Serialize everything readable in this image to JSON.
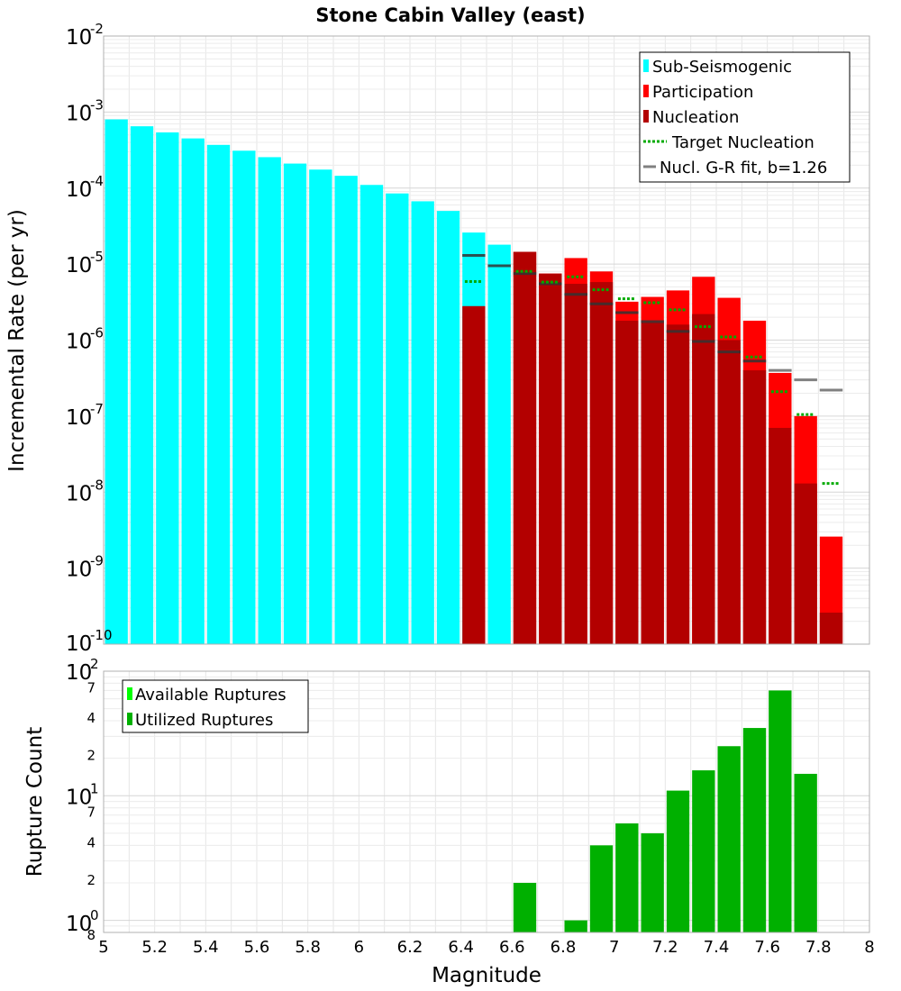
{
  "chart_data": [
    {
      "type": "bar",
      "title": "Stone Cabin Valley (east)",
      "xlabel": "",
      "ylabel": "Incremental Rate (per yr)",
      "xlim": [
        5,
        8
      ],
      "ylim": [
        1e-10,
        0.01
      ],
      "yscale": "log",
      "yticks": [
        {
          "base": "10",
          "exp": "-2",
          "value": 0.01
        },
        {
          "base": "10",
          "exp": "-3",
          "value": 0.001
        },
        {
          "base": "10",
          "exp": "-4",
          "value": 0.0001
        },
        {
          "base": "10",
          "exp": "-5",
          "value": 1e-05
        },
        {
          "base": "10",
          "exp": "-6",
          "value": 1e-06
        },
        {
          "base": "10",
          "exp": "-7",
          "value": 1e-07
        },
        {
          "base": "10",
          "exp": "-8",
          "value": 1e-08
        },
        {
          "base": "10",
          "exp": "-9",
          "value": 1e-09
        },
        {
          "base": "10",
          "exp": "-10",
          "value": 1e-10
        }
      ],
      "bin_width": 0.1,
      "legend_position": "top-right",
      "series": [
        {
          "name": "Sub-Seismogenic",
          "color": "#00ffff",
          "style": "bar",
          "points": [
            [
              5.05,
              0.0008
            ],
            [
              5.15,
              0.00065
            ],
            [
              5.25,
              0.00054
            ],
            [
              5.35,
              0.00045
            ],
            [
              5.45,
              0.00037
            ],
            [
              5.55,
              0.00031
            ],
            [
              5.65,
              0.000255
            ],
            [
              5.75,
              0.00021
            ],
            [
              5.85,
              0.000175
            ],
            [
              5.95,
              0.000145
            ],
            [
              6.05,
              0.00011
            ],
            [
              6.15,
              8.5e-05
            ],
            [
              6.25,
              6.7e-05
            ],
            [
              6.35,
              5e-05
            ],
            [
              6.45,
              2.6e-05
            ],
            [
              6.55,
              1.8e-05
            ]
          ]
        },
        {
          "name": "Participation",
          "color": "#ff0000",
          "style": "bar",
          "points": [
            [
              6.65,
              1.45e-05
            ],
            [
              6.75,
              7.5e-06
            ],
            [
              6.85,
              1.2e-05
            ],
            [
              6.95,
              8e-06
            ],
            [
              7.05,
              3.2e-06
            ],
            [
              7.15,
              3.7e-06
            ],
            [
              7.25,
              4.5e-06
            ],
            [
              7.35,
              6.8e-06
            ],
            [
              7.45,
              3.6e-06
            ],
            [
              7.55,
              1.8e-06
            ],
            [
              7.65,
              3.7e-07
            ],
            [
              7.75,
              1e-07
            ],
            [
              7.85,
              2.6e-09
            ]
          ]
        },
        {
          "name": "Nucleation",
          "color": "#b30000",
          "style": "bar",
          "points": [
            [
              6.45,
              2.8e-06
            ],
            [
              6.65,
              1.45e-05
            ],
            [
              6.75,
              7.5e-06
            ],
            [
              6.85,
              5.5e-06
            ],
            [
              6.95,
              5.8e-06
            ],
            [
              7.05,
              1.8e-06
            ],
            [
              7.15,
              1.7e-06
            ],
            [
              7.25,
              1.6e-06
            ],
            [
              7.35,
              2.2e-06
            ],
            [
              7.45,
              1e-06
            ],
            [
              7.55,
              4e-07
            ],
            [
              7.65,
              7e-08
            ],
            [
              7.75,
              1.3e-08
            ],
            [
              7.85,
              2.6e-10
            ]
          ]
        },
        {
          "name": "Target Nucleation",
          "color": "#00aa00",
          "style": "dotted",
          "points": [
            [
              6.45,
              5.9e-06
            ],
            [
              6.65,
              8e-06
            ],
            [
              6.75,
              5.8e-06
            ],
            [
              6.85,
              6.8e-06
            ],
            [
              6.95,
              4.6e-06
            ],
            [
              7.05,
              3.5e-06
            ],
            [
              7.15,
              3.1e-06
            ],
            [
              7.25,
              2.5e-06
            ],
            [
              7.35,
              1.5e-06
            ],
            [
              7.45,
              1.1e-06
            ],
            [
              7.55,
              6e-07
            ],
            [
              7.65,
              2.1e-07
            ],
            [
              7.75,
              1.05e-07
            ],
            [
              7.85,
              1.3e-08
            ]
          ]
        },
        {
          "name": "Nucl. G-R fit, b=1.26",
          "color": "#808080",
          "style": "dash",
          "points": [
            [
              6.45,
              1.3e-05
            ],
            [
              6.55,
              9.5e-06
            ],
            [
              6.65,
              7.5e-06
            ],
            [
              6.75,
              5.5e-06
            ],
            [
              6.85,
              4e-06
            ],
            [
              6.95,
              3e-06
            ],
            [
              7.05,
              2.3e-06
            ],
            [
              7.15,
              1.75e-06
            ],
            [
              7.25,
              1.3e-06
            ],
            [
              7.35,
              9.6e-07
            ],
            [
              7.45,
              7e-07
            ],
            [
              7.55,
              5.3e-07
            ],
            [
              7.65,
              4e-07
            ],
            [
              7.75,
              3e-07
            ],
            [
              7.85,
              2.2e-07
            ]
          ]
        }
      ]
    },
    {
      "type": "bar",
      "title": "",
      "xlabel": "Magnitude",
      "ylabel": "Rupture Count",
      "xlim": [
        5,
        8
      ],
      "ylim": [
        0.8,
        100
      ],
      "yscale": "log",
      "xticks": [
        "5",
        "5.2",
        "5.4",
        "5.6",
        "5.8",
        "6",
        "6.2",
        "6.4",
        "6.6",
        "6.8",
        "7",
        "7.2",
        "7.4",
        "7.6",
        "7.8",
        "8"
      ],
      "yticks": [
        {
          "base": "10",
          "exp": "2",
          "value": 100
        },
        {
          "base": "10",
          "exp": "1",
          "value": 10
        },
        {
          "base": "10",
          "exp": "0",
          "value": 1
        }
      ],
      "minor_tick_labels": [
        {
          "label": "7",
          "value": 70
        },
        {
          "label": "4",
          "value": 40
        },
        {
          "label": "2",
          "value": 20
        },
        {
          "label": "7",
          "value": 7
        },
        {
          "label": "4",
          "value": 4
        },
        {
          "label": "2",
          "value": 2
        },
        {
          "label": "8",
          "value": 0.8
        }
      ],
      "legend_position": "top-left",
      "series": [
        {
          "name": "Available Ruptures",
          "color": "#00ff00",
          "style": "bar",
          "points": []
        },
        {
          "name": "Utilized Ruptures",
          "color": "#00b000",
          "style": "bar",
          "points": [
            [
              6.65,
              2
            ],
            [
              6.85,
              1
            ],
            [
              6.95,
              4
            ],
            [
              7.05,
              6
            ],
            [
              7.15,
              5
            ],
            [
              7.25,
              11
            ],
            [
              7.35,
              16
            ],
            [
              7.45,
              25
            ],
            [
              7.55,
              35
            ],
            [
              7.65,
              70
            ],
            [
              7.75,
              15
            ]
          ]
        }
      ]
    }
  ]
}
